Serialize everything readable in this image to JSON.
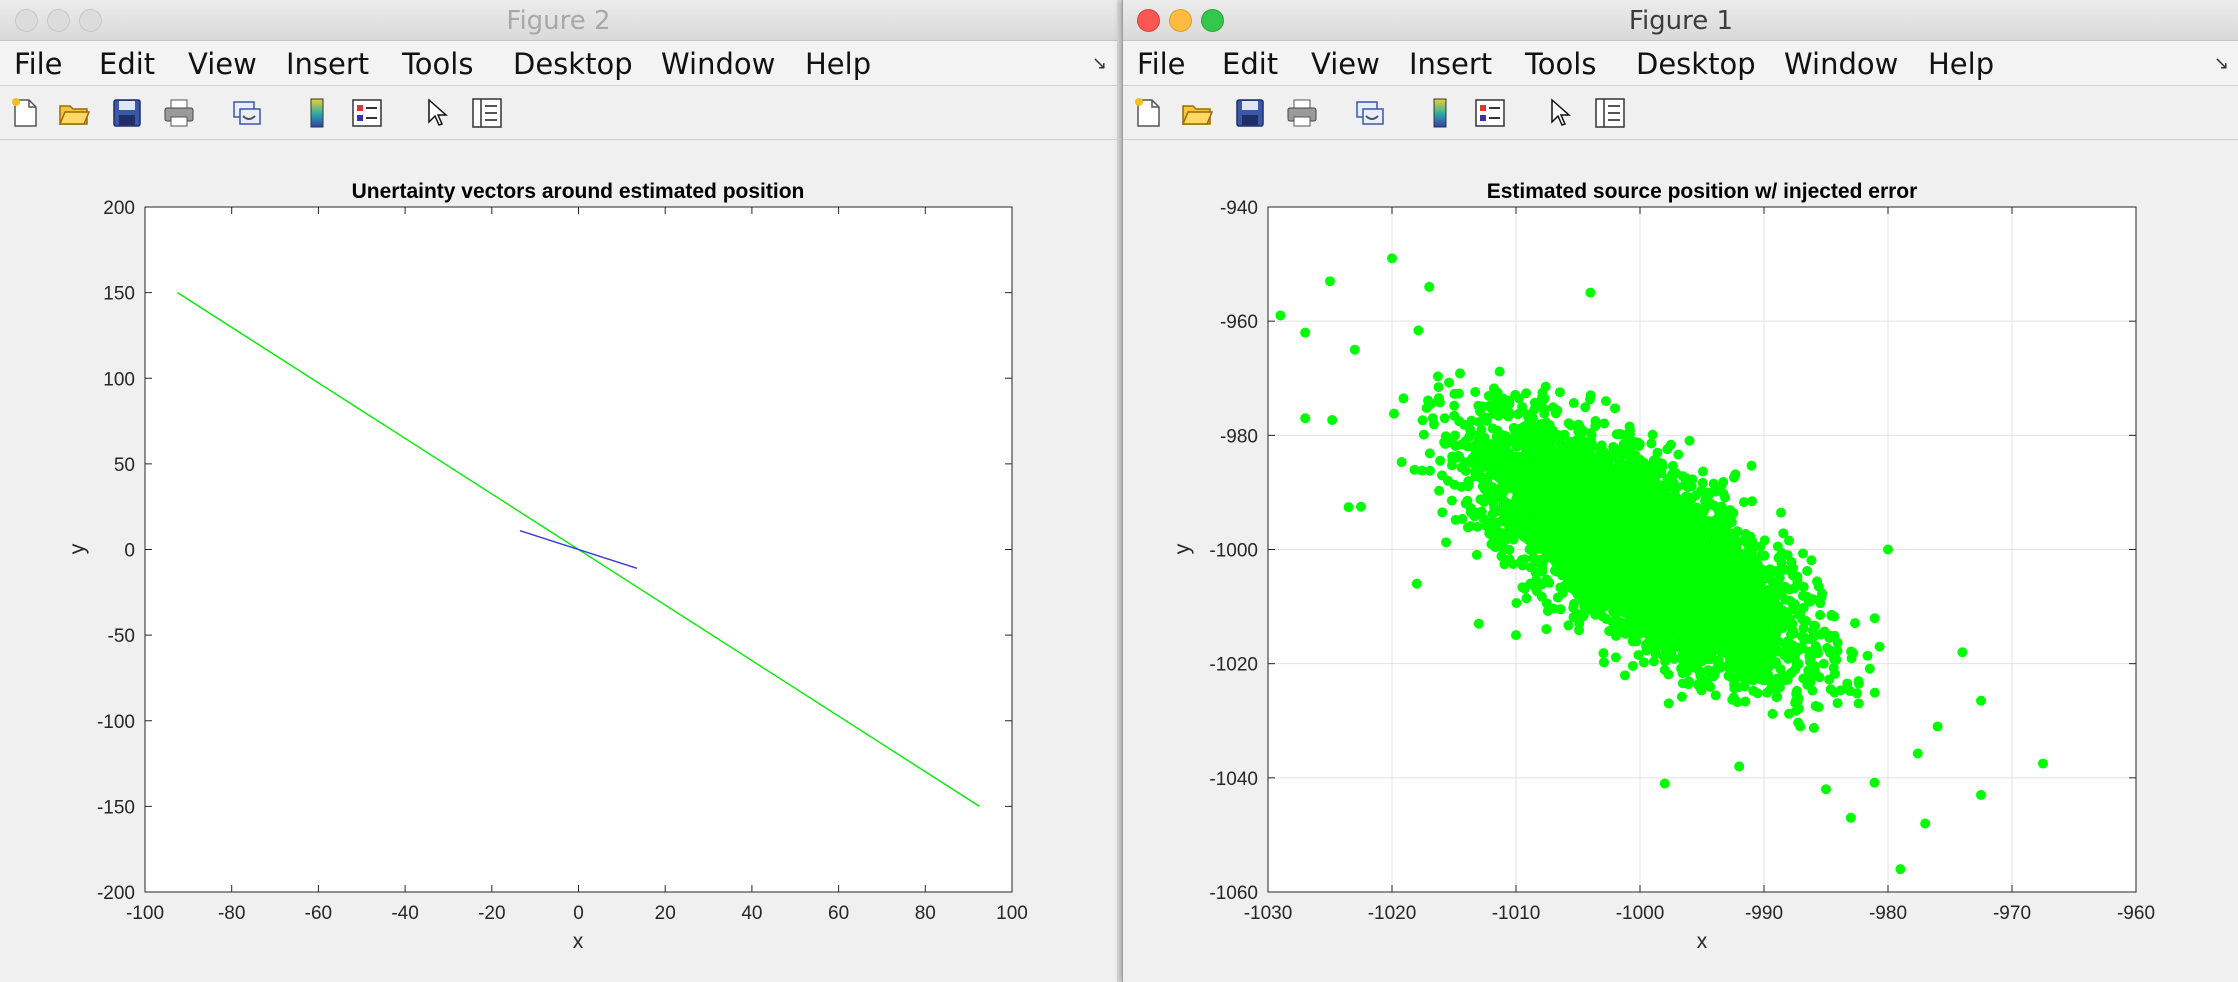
{
  "menu": [
    "File",
    "Edit",
    "View",
    "Insert",
    "Tools",
    "Desktop",
    "Window",
    "Help"
  ],
  "toolbar_icons": [
    "new-figure-icon",
    "open-file-icon",
    "save-icon",
    "print-icon",
    "link-plot-icon",
    "insert-colorbar-icon",
    "insert-legend-icon",
    "edit-plot-cursor-icon",
    "property-inspector-icon"
  ],
  "window_left": {
    "title": "Figure 2",
    "active": false,
    "chart_data": {
      "type": "line",
      "title": "Unertainty vectors around estimated position",
      "xlabel": "x",
      "ylabel": "y",
      "xlim": [
        -100,
        100
      ],
      "ylim": [
        -200,
        200
      ],
      "xticks": [
        -100,
        -80,
        -60,
        -40,
        -20,
        0,
        20,
        40,
        60,
        80,
        100
      ],
      "yticks": [
        -200,
        -150,
        -100,
        -50,
        0,
        50,
        100,
        150,
        200
      ],
      "grid": false,
      "series": [
        {
          "color": "#00ee00",
          "x": [
            -92.5,
            92.5
          ],
          "y": [
            150,
            -150
          ]
        },
        {
          "color": "#3b3bd6",
          "x": [
            -13.5,
            13.5
          ],
          "y": [
            11,
            -11
          ]
        }
      ]
    }
  },
  "window_right": {
    "title": "Figure 1",
    "active": true,
    "colors": {
      "close": "#fc5753",
      "minimize": "#fdbc40",
      "zoom": "#34c84a"
    },
    "chart_data": {
      "type": "scatter",
      "title": "Estimated source position w/ injected error",
      "xlabel": "x",
      "ylabel": "y",
      "xlim": [
        -1030,
        -960
      ],
      "ylim": [
        -1060,
        -940
      ],
      "xticks": [
        -1030,
        -1020,
        -1010,
        -1000,
        -990,
        -980,
        -970,
        -960
      ],
      "yticks": [
        -1060,
        -1040,
        -1020,
        -1000,
        -980,
        -960,
        -940
      ],
      "grid": true,
      "marker_color": "#00ff00",
      "distribution": {
        "center": [
          -1000,
          -1000
        ],
        "cov": [
          [
            36,
            -42
          ],
          [
            -42,
            100
          ]
        ],
        "n": 6000
      },
      "outliers": [
        [
          -1029,
          -959
        ],
        [
          -1025,
          -953
        ],
        [
          -1020,
          -949
        ],
        [
          -1017,
          -954
        ],
        [
          -1027,
          -977
        ],
        [
          -1004,
          -955
        ],
        [
          -967.5,
          -1037.5
        ],
        [
          -972.5,
          -1026.5
        ],
        [
          -972.5,
          -1043
        ],
        [
          -979,
          -1056
        ],
        [
          -977,
          -1048
        ],
        [
          -983,
          -1047
        ],
        [
          -998,
          -1041
        ],
        [
          -980,
          -1000
        ],
        [
          -974,
          -1018
        ],
        [
          -1022.5,
          -992.5
        ],
        [
          -1018,
          -1006
        ],
        [
          -1013,
          -1013
        ],
        [
          -1027,
          -962
        ],
        [
          -1023,
          -965
        ],
        [
          -985,
          -1042
        ],
        [
          -976,
          -1031
        ],
        [
          -989,
          -1014
        ],
        [
          -1010,
          -1015
        ],
        [
          -992,
          -1038
        ]
      ]
    }
  }
}
